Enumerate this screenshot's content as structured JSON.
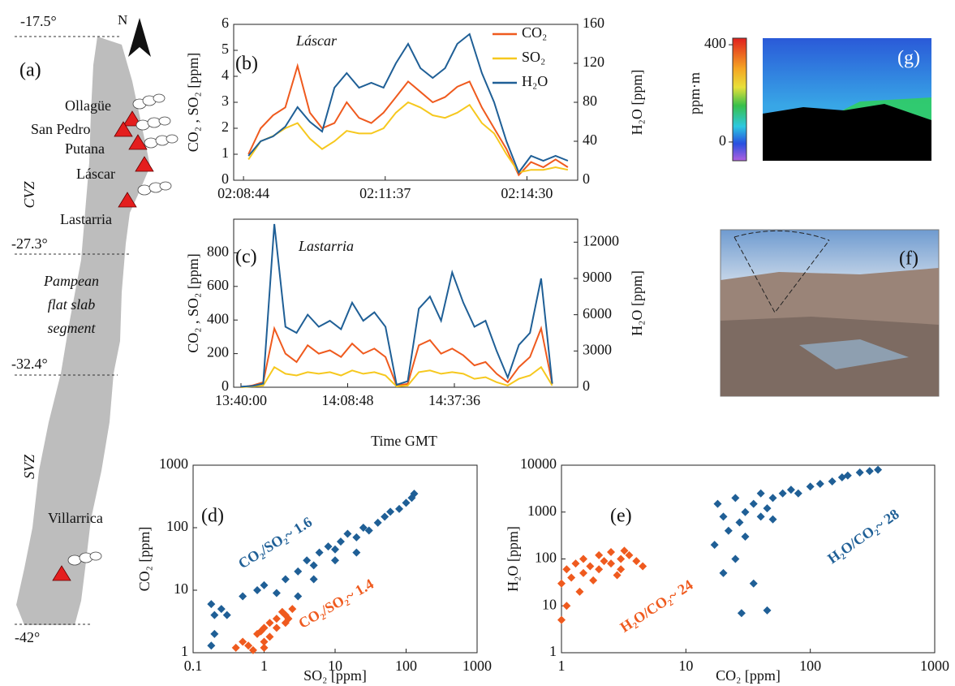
{
  "map": {
    "label": "(a)",
    "north": "N",
    "latitudes": [
      "-17.5°",
      "-27.3°",
      "-32.4°",
      "-42°"
    ],
    "volcanoes": [
      "Ollagüe",
      "San Pedro",
      "Putana",
      "Láscar",
      "Lastarria",
      "Villarrica"
    ],
    "zones": [
      "CVZ",
      "SVZ"
    ],
    "segment": [
      "Pampean",
      "flat slab",
      "segment"
    ]
  },
  "photos": {
    "f": "(f)",
    "g": "(g)"
  },
  "colorbar": {
    "label": "ppm·m",
    "lim": [
      -77,
      427
    ],
    "ticks": [
      0,
      400
    ]
  },
  "chart_data": [
    {
      "type": "line",
      "panel_label": "(b)",
      "annotations": [
        {
          "text": "Láscar"
        }
      ],
      "ylabel": "CO₂ , SO₂ [ppm]",
      "y2label": "H₂O [ppm]",
      "legend": "upper right",
      "x": [
        "02:08:50",
        "02:09:05",
        "02:09:20",
        "02:09:35",
        "02:09:50",
        "02:10:05",
        "02:10:20",
        "02:10:35",
        "02:10:50",
        "02:11:05",
        "02:11:20",
        "02:11:35",
        "02:11:50",
        "02:12:05",
        "02:12:20",
        "02:12:35",
        "02:12:50",
        "02:13:05",
        "02:13:20",
        "02:13:35",
        "02:13:50",
        "02:14:05",
        "02:14:20",
        "02:14:35",
        "02:14:50",
        "02:15:05",
        "02:15:20"
      ],
      "xlim": [
        "02:08:32",
        "02:15:32"
      ],
      "xticks": [
        "02:08:44",
        "02:11:37",
        "02:14:30"
      ],
      "ylim": [
        0,
        6
      ],
      "yticks": [
        0,
        1,
        2,
        3,
        4,
        5,
        6
      ],
      "y2lim": [
        0,
        160
      ],
      "y2ticks": [
        0,
        40,
        80,
        120,
        160
      ],
      "series": [
        {
          "name": "CO₂",
          "color": "#ef5a1e",
          "values": [
            1.0,
            2.0,
            2.5,
            2.8,
            4.4,
            2.6,
            2.0,
            2.2,
            3.0,
            2.4,
            2.2,
            2.6,
            3.2,
            3.8,
            3.4,
            3.0,
            3.2,
            3.6,
            3.8,
            2.8,
            2.0,
            1.2,
            0.2,
            0.7,
            0.5,
            0.8,
            0.5
          ]
        },
        {
          "name": "SO₂",
          "color": "#f6c81e",
          "values": [
            0.8,
            1.5,
            1.7,
            2.0,
            2.2,
            1.6,
            1.2,
            1.5,
            1.9,
            1.8,
            1.8,
            2.0,
            2.6,
            3.0,
            2.8,
            2.5,
            2.4,
            2.6,
            2.9,
            2.2,
            1.8,
            1.0,
            0.3,
            0.4,
            0.4,
            0.5,
            0.4
          ]
        },
        {
          "name": "H₂O",
          "color": "#1f5f96",
          "axis": "y2",
          "values": [
            25,
            40,
            45,
            55,
            75,
            60,
            50,
            95,
            110,
            95,
            100,
            95,
            120,
            140,
            115,
            105,
            115,
            140,
            150,
            110,
            80,
            40,
            8,
            25,
            20,
            25,
            20
          ]
        }
      ]
    },
    {
      "type": "line",
      "panel_label": "(c)",
      "annotations": [
        {
          "text": "Lastarria"
        }
      ],
      "ylabel": "CO₂ , SO₂ [ppm]",
      "y2label": "H₂O [ppm]",
      "xlabel": "Time GMT",
      "x": [
        "13:40:00",
        "13:43:00",
        "13:46:00",
        "13:49:00",
        "13:52:00",
        "13:55:00",
        "13:58:00",
        "14:01:00",
        "14:04:00",
        "14:07:00",
        "14:10:00",
        "14:13:00",
        "14:16:00",
        "14:19:00",
        "14:22:00",
        "14:25:00",
        "14:28:00",
        "14:31:00",
        "14:34:00",
        "14:37:00",
        "14:40:00",
        "14:43:00",
        "14:46:00",
        "14:49:00",
        "14:52:00",
        "14:55:00",
        "14:58:00",
        "15:01:00",
        "15:04:00"
      ],
      "xlim": [
        "13:38:02",
        "15:10:53"
      ],
      "xticks": [
        "13:40:00",
        "14:08:48",
        "14:37:36"
      ],
      "ylim": [
        0,
        1000
      ],
      "yticks": [
        0,
        200,
        400,
        600,
        800
      ],
      "y2lim": [
        0,
        13900
      ],
      "y2ticks": [
        0,
        3000,
        6000,
        9000,
        12000
      ],
      "series": [
        {
          "name": "CO₂",
          "color": "#ef5a1e",
          "values": [
            0,
            10,
            30,
            350,
            200,
            150,
            250,
            200,
            220,
            180,
            260,
            200,
            230,
            180,
            10,
            20,
            250,
            280,
            200,
            230,
            190,
            130,
            150,
            80,
            30,
            120,
            180,
            350,
            20
          ]
        },
        {
          "name": "SO₂",
          "color": "#f6c81e",
          "values": [
            0,
            5,
            10,
            120,
            80,
            70,
            90,
            80,
            90,
            70,
            100,
            80,
            90,
            70,
            5,
            10,
            90,
            100,
            80,
            90,
            80,
            50,
            60,
            30,
            10,
            50,
            70,
            120,
            10
          ]
        },
        {
          "name": "H₂O",
          "color": "#1f5f96",
          "axis": "y2",
          "values": [
            50,
            100,
            300,
            13500,
            5000,
            4500,
            6000,
            5000,
            5500,
            4800,
            7000,
            5500,
            6200,
            5000,
            200,
            500,
            6500,
            7500,
            5500,
            9500,
            7000,
            5000,
            5500,
            3000,
            800,
            3500,
            4500,
            9000,
            300
          ]
        }
      ]
    },
    {
      "type": "scatter",
      "panel_label": "(d)",
      "xlabel": "SO₂ [ppm]",
      "ylabel": "CO₂ [ppm]",
      "xscale": "log",
      "yscale": "log",
      "xlim": [
        0.1,
        1000
      ],
      "xticks": [
        0.1,
        1,
        10,
        100,
        1000
      ],
      "ylim": [
        1,
        1000
      ],
      "yticks": [
        1,
        10,
        100,
        1000
      ],
      "annotations": [
        {
          "text": "CO₂/SO₂~ 1.6",
          "color": "#1f5f96"
        },
        {
          "text": "CO₂/SO₂~ 1.4",
          "color": "#ef5a1e"
        }
      ],
      "series": [
        {
          "color": "#1f5f96",
          "x": [
            0.18,
            0.2,
            0.2,
            0.25,
            0.3,
            0.18,
            0.5,
            0.8,
            1,
            1.5,
            2,
            3,
            4,
            5,
            6,
            8,
            10,
            12,
            15,
            20,
            25,
            30,
            40,
            50,
            60,
            80,
            100,
            120,
            130,
            5,
            10,
            20,
            3
          ],
          "values": [
            1.3,
            2,
            4,
            5,
            4,
            6,
            8,
            10,
            12,
            9,
            15,
            20,
            30,
            25,
            40,
            50,
            45,
            60,
            80,
            70,
            100,
            90,
            120,
            150,
            180,
            200,
            250,
            300,
            350,
            15,
            30,
            40,
            8
          ]
        },
        {
          "color": "#ef5a1e",
          "x": [
            0.4,
            0.5,
            0.6,
            0.8,
            1,
            1,
            1.2,
            1.5,
            1.5,
            2,
            2,
            2.5,
            0.7,
            1.2,
            1.8,
            2.2,
            1,
            0.9
          ],
          "values": [
            1.2,
            1.5,
            1.3,
            2,
            1.5,
            2.5,
            3,
            2.5,
            3.5,
            4,
            3,
            5,
            1.1,
            1.8,
            4.5,
            3.5,
            1.2,
            2.2
          ]
        }
      ]
    },
    {
      "type": "scatter",
      "panel_label": "(e)",
      "xlabel": "CO₂ [ppm]",
      "ylabel": "H₂O [ppm]",
      "xscale": "log",
      "yscale": "log",
      "xlim": [
        1,
        1000
      ],
      "xticks": [
        1,
        10,
        100,
        1000
      ],
      "ylim": [
        1,
        10000
      ],
      "yticks": [
        1,
        10,
        100,
        1000,
        10000
      ],
      "annotations": [
        {
          "text": "H₂O/CO₂~ 24",
          "color": "#ef5a1e"
        },
        {
          "text": "H₂O/CO₂~ 28",
          "color": "#1f5f96"
        }
      ],
      "series": [
        {
          "color": "#ef5a1e",
          "x": [
            1,
            1,
            1.1,
            1.2,
            1.3,
            1.5,
            1.5,
            1.7,
            2,
            2,
            2.2,
            2.5,
            2.5,
            3,
            3,
            3.2,
            3.5,
            4,
            4.5,
            1.1,
            1.4,
            1.8,
            2.8
          ],
          "values": [
            5,
            30,
            60,
            40,
            80,
            50,
            100,
            70,
            60,
            120,
            90,
            80,
            140,
            100,
            60,
            150,
            120,
            90,
            70,
            10,
            20,
            35,
            45
          ]
        },
        {
          "color": "#1f5f96",
          "x": [
            17,
            18,
            20,
            22,
            25,
            27,
            30,
            30,
            35,
            40,
            40,
            45,
            50,
            50,
            60,
            70,
            80,
            100,
            120,
            150,
            180,
            200,
            250,
            300,
            350,
            25,
            35,
            45,
            28,
            20
          ],
          "values": [
            200,
            1500,
            800,
            400,
            2000,
            600,
            300,
            1000,
            1500,
            800,
            2500,
            1200,
            2000,
            700,
            2500,
            3000,
            2500,
            3500,
            4000,
            4500,
            5500,
            6000,
            7000,
            7500,
            8000,
            100,
            30,
            8,
            7,
            50
          ]
        }
      ]
    }
  ]
}
